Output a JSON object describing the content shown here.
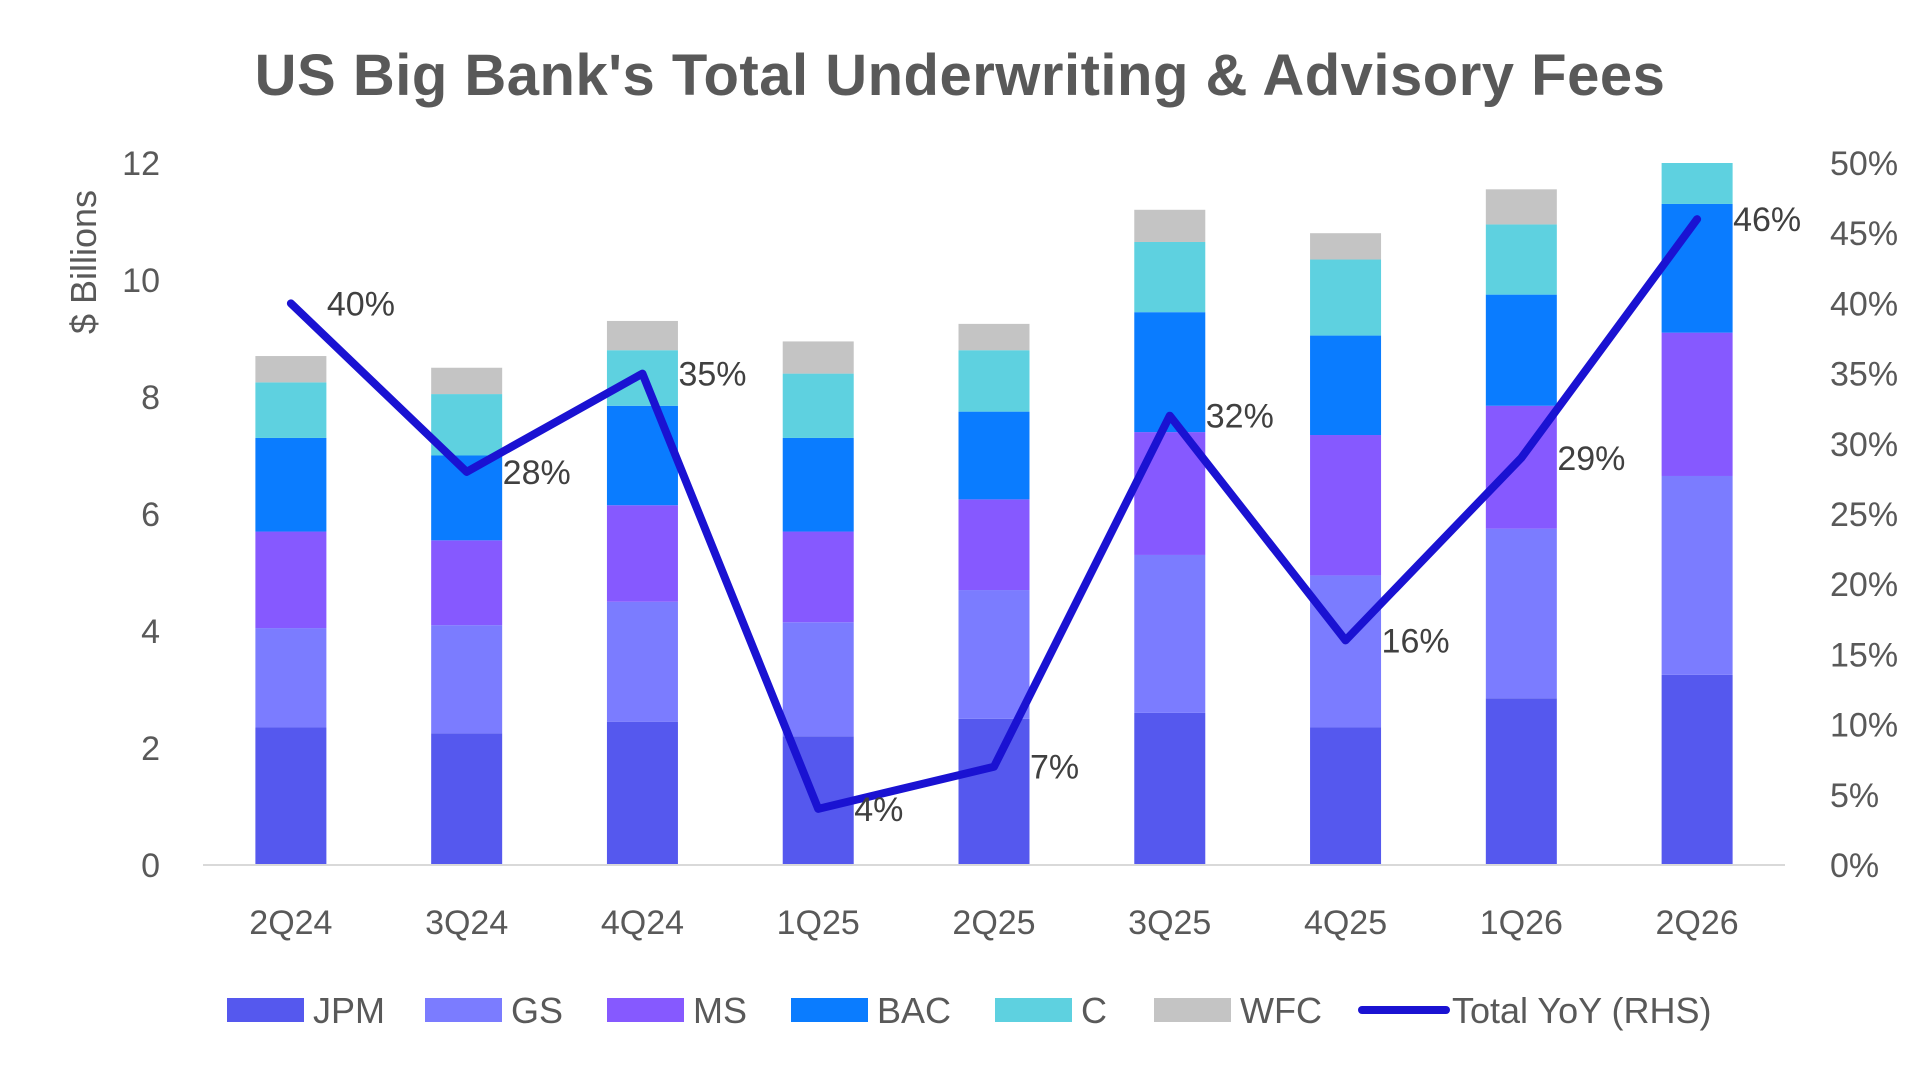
{
  "chart_data": {
    "type": "bar",
    "stacked": true,
    "title": "US Big Bank's Total Underwriting & Advisory Fees",
    "ylabel": "$ Billions",
    "ylim": [
      0,
      12
    ],
    "y_ticks": [
      "0",
      "2",
      "4",
      "6",
      "8",
      "10",
      "12"
    ],
    "y2lim": [
      0,
      50
    ],
    "y2_ticks": [
      "0%",
      "5%",
      "10%",
      "15%",
      "20%",
      "25%",
      "30%",
      "35%",
      "40%",
      "45%",
      "50%"
    ],
    "categories": [
      "2Q24",
      "3Q24",
      "4Q24",
      "1Q25",
      "2Q25",
      "3Q25",
      "4Q25",
      "1Q26",
      "2Q26"
    ],
    "series": [
      {
        "name": "JPM",
        "color": "#5558EE",
        "values": [
          2.35,
          2.25,
          2.45,
          2.2,
          2.5,
          2.6,
          2.35,
          2.85,
          3.25
        ]
      },
      {
        "name": "GS",
        "color": "#7B7CFF",
        "values": [
          1.7,
          1.85,
          2.05,
          1.95,
          2.2,
          2.7,
          2.6,
          2.9,
          3.4
        ]
      },
      {
        "name": "MS",
        "color": "#8659FF",
        "values": [
          1.65,
          1.45,
          1.65,
          1.55,
          1.55,
          2.1,
          2.4,
          2.1,
          2.45
        ]
      },
      {
        "name": "BAC",
        "color": "#0A7CFF",
        "values": [
          1.6,
          1.45,
          1.7,
          1.6,
          1.5,
          2.05,
          1.7,
          1.9,
          2.2
        ]
      },
      {
        "name": "C",
        "color": "#5ED1E0",
        "values": [
          0.95,
          1.05,
          0.95,
          1.1,
          1.05,
          1.2,
          1.3,
          1.2,
          0.7
        ]
      },
      {
        "name": "WFC",
        "color": "#C4C4C4",
        "values": [
          0.45,
          0.45,
          0.5,
          0.55,
          0.45,
          0.55,
          0.45,
          0.6,
          0.0
        ]
      }
    ],
    "line_series": {
      "name": "Total YoY (RHS)",
      "color": "#1A12D2",
      "axis": "right",
      "values": [
        40,
        28,
        35,
        4,
        7,
        32,
        16,
        29,
        46
      ],
      "labels": [
        "40%",
        "28%",
        "35%",
        "4%",
        "7%",
        "32%",
        "16%",
        "29%",
        "46%"
      ]
    },
    "legend_placement": "bottom",
    "grid": false
  }
}
